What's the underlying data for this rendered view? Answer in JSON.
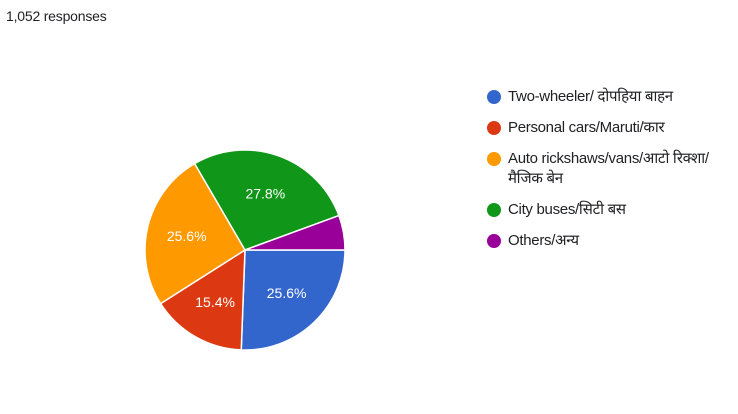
{
  "summary": {
    "responses": "1,052 responses"
  },
  "colors": {
    "blue": "#3366cc",
    "red": "#dc3912",
    "orange": "#ff9900",
    "green": "#109618",
    "purple": "#990099"
  },
  "chart_data": {
    "type": "pie",
    "title": "",
    "legend_position": "right",
    "slices": [
      {
        "label": "Two-wheeler/ दोपहिया बाहन",
        "value": 25.6,
        "percent_label": "25.6%",
        "color": "#3366cc"
      },
      {
        "label": "Personal cars/Maruti/कार",
        "value": 15.4,
        "percent_label": "15.4%",
        "color": "#dc3912"
      },
      {
        "label": "Auto rickshaws/vans/आटो रिक्शा/मैजिक बेन",
        "value": 25.6,
        "percent_label": "25.6%",
        "color": "#ff9900"
      },
      {
        "label": "City buses/सिटी बस",
        "value": 27.8,
        "percent_label": "27.8%",
        "color": "#109618"
      },
      {
        "label": "Others/अन्य",
        "value": 5.6,
        "percent_label": "",
        "color": "#990099"
      }
    ]
  }
}
